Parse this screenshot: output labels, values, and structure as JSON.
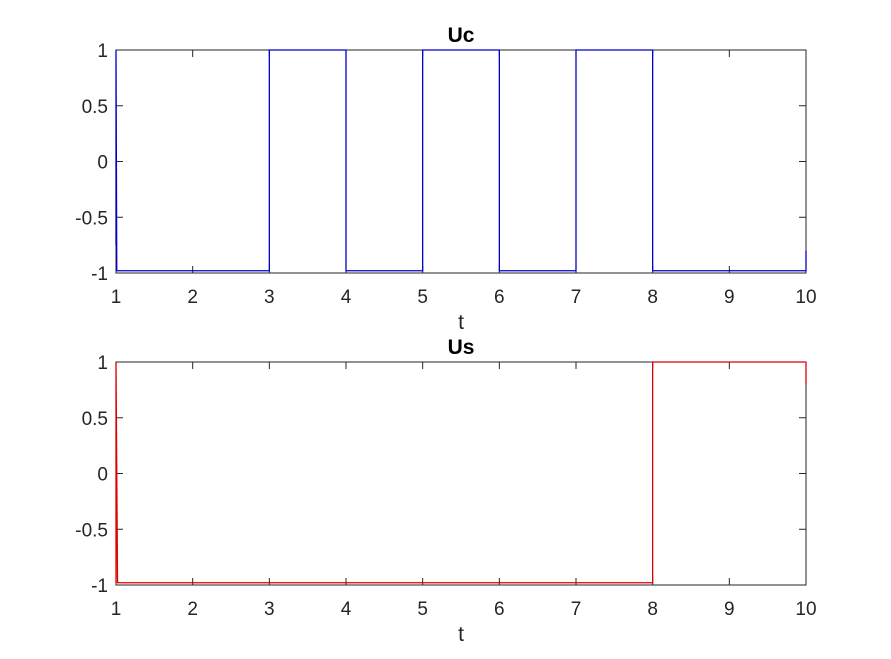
{
  "chart_data": [
    {
      "type": "line",
      "title": "Uc",
      "xlabel": "t",
      "ylabel": "",
      "xlim": [
        1,
        10
      ],
      "ylim": [
        -1,
        1
      ],
      "xticks": [
        1,
        2,
        3,
        4,
        5,
        6,
        7,
        8,
        9,
        10
      ],
      "xtick_labels": [
        "1",
        "2",
        "3",
        "4",
        "5",
        "6",
        "7",
        "8",
        "9",
        "10"
      ],
      "yticks": [
        -1,
        -0.5,
        0,
        0.5,
        1
      ],
      "ytick_labels": [
        "-1",
        "-0.5",
        "0",
        "0.5",
        "1"
      ],
      "grid": false,
      "color": "#0000cc",
      "series": [
        {
          "x": [
            1,
            1,
            1.01,
            3,
            3,
            4,
            4,
            5,
            5,
            6,
            6,
            7,
            7,
            8,
            8,
            10,
            10
          ],
          "y": [
            -0.75,
            1,
            -0.98,
            -0.98,
            1,
            1,
            -0.98,
            -0.98,
            1,
            1,
            -0.98,
            -0.98,
            1,
            1,
            -0.98,
            -0.98,
            -0.8
          ]
        }
      ]
    },
    {
      "type": "line",
      "title": "Us",
      "xlabel": "t",
      "ylabel": "",
      "xlim": [
        1,
        10
      ],
      "ylim": [
        -1,
        1
      ],
      "xticks": [
        1,
        2,
        3,
        4,
        5,
        6,
        7,
        8,
        9,
        10
      ],
      "xtick_labels": [
        "1",
        "2",
        "3",
        "4",
        "5",
        "6",
        "7",
        "8",
        "9",
        "10"
      ],
      "yticks": [
        -1,
        -0.5,
        0,
        0.5,
        1
      ],
      "ytick_labels": [
        "-1",
        "-0.5",
        "0",
        "0.5",
        "1"
      ],
      "grid": false,
      "color": "#dd0000",
      "series": [
        {
          "x": [
            1,
            1,
            1.02,
            8,
            8,
            10,
            10
          ],
          "y": [
            -0.98,
            1,
            -0.98,
            -0.98,
            1,
            1,
            0.8
          ]
        }
      ]
    }
  ]
}
